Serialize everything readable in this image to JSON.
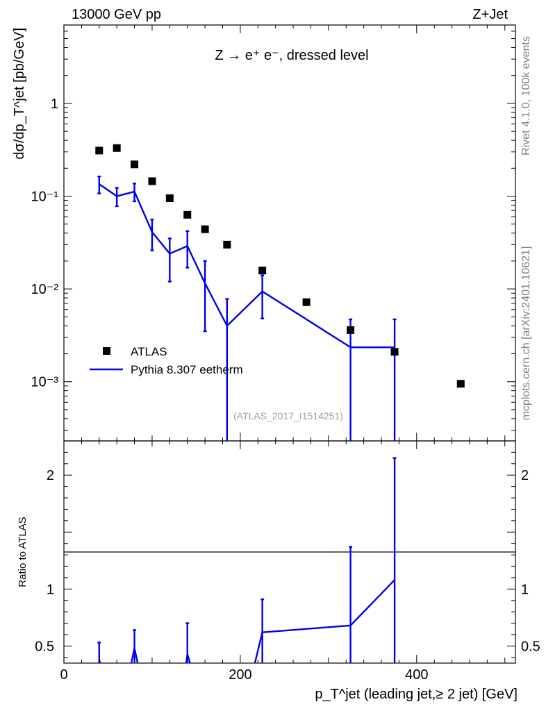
{
  "header": {
    "energy": "13000 GeV pp",
    "process": "Z+Jet"
  },
  "side": {
    "rivet": "Rivet 4.1.0,  100k events",
    "mcplots": "mcplots.cern.ch [arXiv:2401.10621]"
  },
  "chart_data": {
    "type": "scatter",
    "title": "Z → e⁺ e⁻, dressed level",
    "analysis": "(ATLAS_2017_I1514251)",
    "xlabel": "p_T^jet (leading jet,≥ 2 jet) [GeV]",
    "ylabel": "dσ/dp_T^jet [pb/GeV]",
    "ratio_ylabel": "Ratio to ATLAS",
    "xlim": [
      0,
      512
    ],
    "ylim": [
      0.00023,
      7
    ],
    "ratio_ylim": [
      0.35,
      2.3
    ],
    "x_ticks": [
      "0",
      "200",
      "400"
    ],
    "y_ticks": [
      "10⁻³",
      "10⁻²",
      "10⁻¹",
      "1"
    ],
    "ratio_ticks": [
      "0.5",
      "1",
      "2"
    ],
    "legend": [
      "ATLAS",
      "Pythia 8.307 eetherm"
    ],
    "series": [
      {
        "name": "ATLAS",
        "color": "#000000",
        "marker": "square",
        "x": [
          40,
          60,
          80,
          100,
          120,
          140,
          160,
          185,
          225,
          275,
          325,
          375,
          450
        ],
        "y": [
          0.31,
          0.33,
          0.22,
          0.145,
          0.095,
          0.063,
          0.044,
          0.03,
          0.0158,
          0.0072,
          0.0036,
          0.0021,
          0.00095
        ]
      },
      {
        "name": "Pythia 8.307 eetherm",
        "color": "#0000ee",
        "marker": "line",
        "x": [
          40,
          60,
          80,
          100,
          120,
          140,
          160,
          185,
          225,
          325,
          375
        ],
        "y": [
          0.135,
          0.1,
          0.112,
          0.041,
          0.024,
          0.029,
          0.0115,
          0.004,
          0.0094,
          0.00235,
          0.00235
        ],
        "y_low": [
          0.107,
          0.078,
          0.088,
          0.026,
          0.012,
          0.017,
          0.0035,
          0.0001,
          0.0048,
          0.0001,
          0.0001
        ],
        "y_high": [
          0.163,
          0.123,
          0.137,
          0.056,
          0.035,
          0.042,
          0.02,
          0.0078,
          0.014,
          0.0047,
          0.0047
        ]
      }
    ],
    "ratio": {
      "name": "Pythia 8.307 eetherm / ATLAS",
      "x": [
        40,
        43,
        75,
        80,
        85,
        138,
        140,
        145,
        215,
        225,
        325,
        375
      ],
      "y": [
        0.38,
        0.3,
        0.3,
        0.48,
        0.3,
        0.3,
        0.43,
        0.3,
        0.3,
        0.62,
        0.68,
        1.08
      ],
      "err_x": [
        40,
        80,
        140,
        225,
        325,
        375
      ],
      "err_low": [
        0.3,
        0.3,
        0.3,
        0.3,
        0.3,
        0.3
      ],
      "err_high": [
        0.53,
        0.64,
        0.7,
        0.91,
        1.37,
        2.15
      ]
    }
  }
}
